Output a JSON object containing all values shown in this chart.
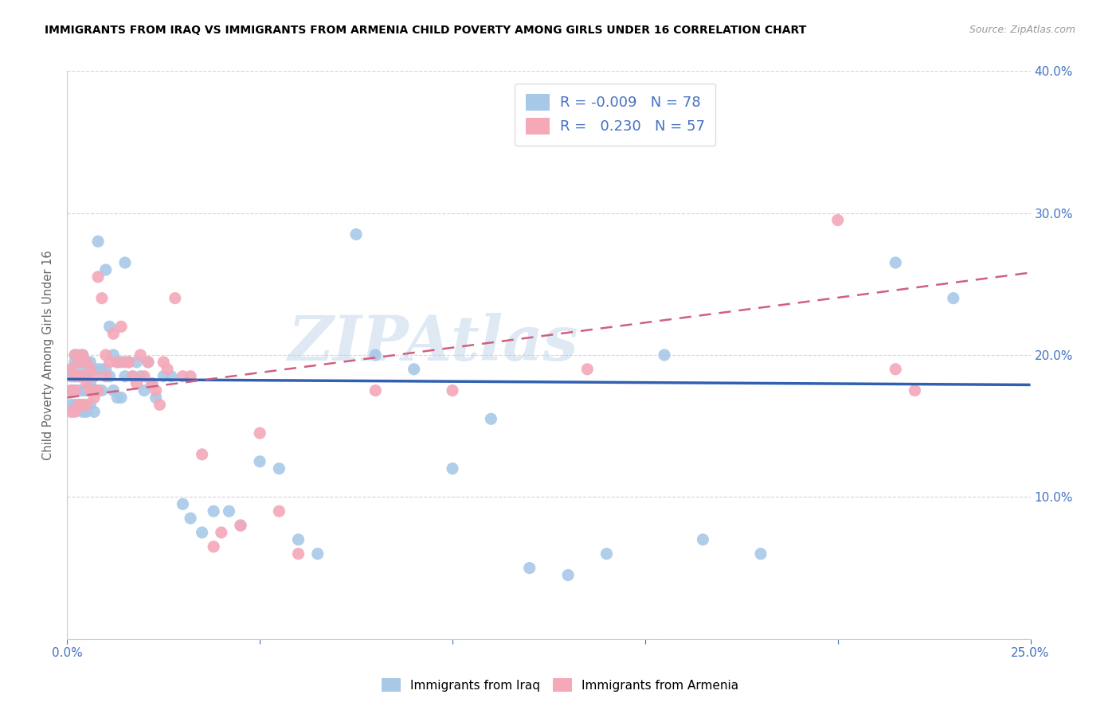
{
  "title": "IMMIGRANTS FROM IRAQ VS IMMIGRANTS FROM ARMENIA CHILD POVERTY AMONG GIRLS UNDER 16 CORRELATION CHART",
  "source": "Source: ZipAtlas.com",
  "ylabel": "Child Poverty Among Girls Under 16",
  "xlim": [
    0,
    0.25
  ],
  "ylim": [
    0,
    0.4
  ],
  "color_iraq": "#a8c8e8",
  "color_armenia": "#f4a8b8",
  "color_iraq_line": "#3060b0",
  "color_armenia_line": "#d06080",
  "watermark": "ZIPAtlas",
  "legend_r1": "R = -0.009",
  "legend_n1": "N = 78",
  "legend_r2": "R =  0.230",
  "legend_n2": "N = 57",
  "iraq_x": [
    0.001,
    0.001,
    0.001,
    0.001,
    0.002,
    0.002,
    0.002,
    0.002,
    0.002,
    0.003,
    0.003,
    0.003,
    0.003,
    0.003,
    0.004,
    0.004,
    0.004,
    0.004,
    0.005,
    0.005,
    0.005,
    0.005,
    0.006,
    0.006,
    0.006,
    0.007,
    0.007,
    0.007,
    0.008,
    0.008,
    0.008,
    0.009,
    0.009,
    0.01,
    0.01,
    0.011,
    0.011,
    0.012,
    0.012,
    0.013,
    0.013,
    0.014,
    0.014,
    0.015,
    0.015,
    0.016,
    0.017,
    0.018,
    0.019,
    0.02,
    0.021,
    0.022,
    0.023,
    0.025,
    0.027,
    0.03,
    0.032,
    0.035,
    0.038,
    0.042,
    0.045,
    0.05,
    0.055,
    0.06,
    0.065,
    0.075,
    0.08,
    0.09,
    0.1,
    0.11,
    0.12,
    0.13,
    0.14,
    0.155,
    0.165,
    0.18,
    0.215,
    0.23
  ],
  "iraq_y": [
    0.19,
    0.185,
    0.175,
    0.165,
    0.2,
    0.195,
    0.185,
    0.175,
    0.165,
    0.2,
    0.195,
    0.185,
    0.175,
    0.165,
    0.2,
    0.19,
    0.175,
    0.16,
    0.195,
    0.185,
    0.175,
    0.16,
    0.195,
    0.18,
    0.165,
    0.19,
    0.175,
    0.16,
    0.28,
    0.19,
    0.175,
    0.19,
    0.175,
    0.26,
    0.19,
    0.22,
    0.185,
    0.2,
    0.175,
    0.195,
    0.17,
    0.195,
    0.17,
    0.265,
    0.185,
    0.195,
    0.185,
    0.195,
    0.185,
    0.175,
    0.195,
    0.18,
    0.17,
    0.185,
    0.185,
    0.095,
    0.085,
    0.075,
    0.09,
    0.09,
    0.08,
    0.125,
    0.12,
    0.07,
    0.06,
    0.285,
    0.2,
    0.19,
    0.12,
    0.155,
    0.05,
    0.045,
    0.06,
    0.2,
    0.07,
    0.06,
    0.265,
    0.24
  ],
  "armenia_x": [
    0.001,
    0.001,
    0.001,
    0.002,
    0.002,
    0.002,
    0.002,
    0.003,
    0.003,
    0.003,
    0.004,
    0.004,
    0.004,
    0.005,
    0.005,
    0.005,
    0.006,
    0.006,
    0.007,
    0.007,
    0.008,
    0.008,
    0.009,
    0.01,
    0.01,
    0.011,
    0.012,
    0.013,
    0.014,
    0.015,
    0.016,
    0.017,
    0.018,
    0.019,
    0.02,
    0.021,
    0.022,
    0.023,
    0.024,
    0.025,
    0.026,
    0.028,
    0.03,
    0.032,
    0.035,
    0.038,
    0.04,
    0.045,
    0.05,
    0.055,
    0.06,
    0.08,
    0.1,
    0.135,
    0.2,
    0.215,
    0.22
  ],
  "armenia_y": [
    0.19,
    0.175,
    0.16,
    0.2,
    0.185,
    0.175,
    0.16,
    0.195,
    0.185,
    0.165,
    0.2,
    0.185,
    0.165,
    0.195,
    0.18,
    0.165,
    0.19,
    0.175,
    0.185,
    0.17,
    0.255,
    0.175,
    0.24,
    0.2,
    0.185,
    0.195,
    0.215,
    0.195,
    0.22,
    0.195,
    0.195,
    0.185,
    0.18,
    0.2,
    0.185,
    0.195,
    0.18,
    0.175,
    0.165,
    0.195,
    0.19,
    0.24,
    0.185,
    0.185,
    0.13,
    0.065,
    0.075,
    0.08,
    0.145,
    0.09,
    0.06,
    0.175,
    0.175,
    0.19,
    0.295,
    0.19,
    0.175
  ],
  "iraq_line_x": [
    0.0,
    0.25
  ],
  "iraq_line_y": [
    0.183,
    0.179
  ],
  "armenia_line_x": [
    0.0,
    0.25
  ],
  "armenia_line_y": [
    0.17,
    0.258
  ]
}
